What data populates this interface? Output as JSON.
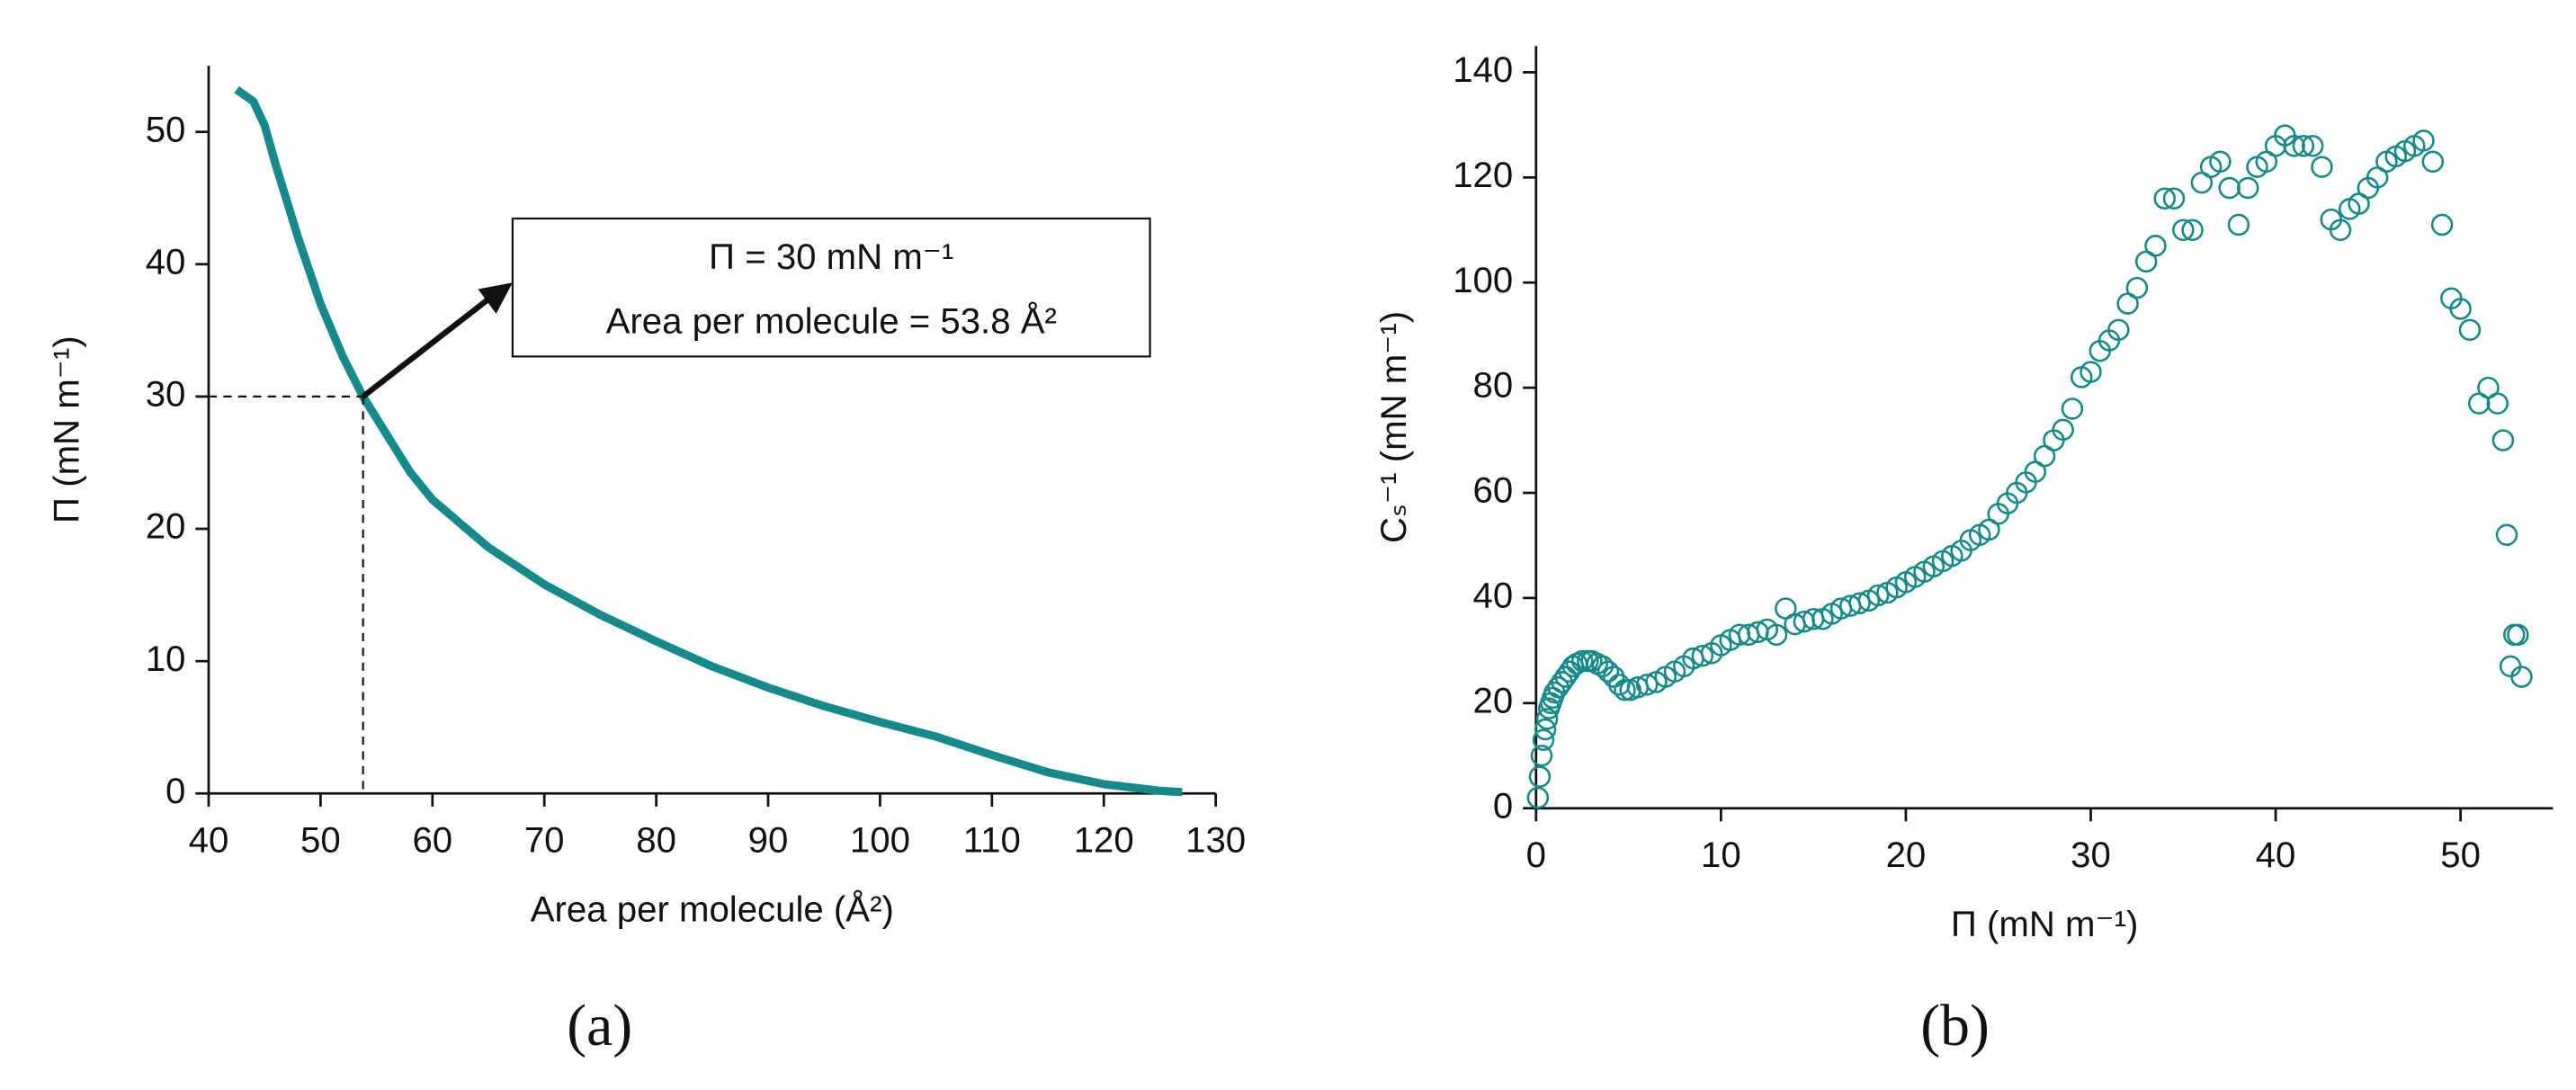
{
  "chart_data": [
    {
      "type": "line",
      "panel_label": "(a)",
      "xlabel": "Area per molecule (Å²)",
      "ylabel": "Π (mN m⁻¹)",
      "annotation": [
        "Π = 30 mN m⁻¹",
        "Area per molecule = 53.8 Å²"
      ],
      "annotation_point": {
        "x": 53.8,
        "y": 30
      },
      "color": "#16898a",
      "x": [
        42.5,
        44,
        45,
        46,
        48,
        50,
        52,
        53.8,
        56,
        58,
        60,
        65,
        70,
        75,
        80,
        85,
        90,
        95,
        100,
        105,
        110,
        115,
        120,
        125,
        127
      ],
      "values": [
        53.2,
        52.3,
        50.5,
        47.5,
        42,
        37,
        33,
        30,
        27,
        24.3,
        22.2,
        18.6,
        15.8,
        13.5,
        11.5,
        9.6,
        8,
        6.6,
        5.4,
        4.3,
        2.9,
        1.6,
        0.7,
        0.2,
        0.1
      ],
      "xlim": [
        40,
        130
      ],
      "xticks": [
        40,
        50,
        60,
        70,
        80,
        90,
        100,
        110,
        120,
        130
      ],
      "ylim": [
        0,
        55
      ],
      "yticks": [
        0,
        10,
        20,
        30,
        40,
        50
      ]
    },
    {
      "type": "scatter",
      "panel_label": "(b)",
      "xlabel": "Π (mN m⁻¹)",
      "ylabel": "Cₛ⁻¹ (mN m⁻¹)",
      "color": "#16898a",
      "x": [
        0.1,
        0.2,
        0.3,
        0.4,
        0.5,
        0.6,
        0.7,
        0.8,
        0.9,
        1.0,
        1.2,
        1.4,
        1.6,
        1.8,
        2.0,
        2.2,
        2.5,
        2.8,
        3.0,
        3.3,
        3.6,
        3.9,
        4.2,
        4.5,
        4.8,
        5.1,
        5.5,
        6,
        6.5,
        7,
        7.5,
        8,
        8.5,
        9,
        9.5,
        10,
        10.5,
        11,
        11.5,
        12,
        12.5,
        13,
        13.5,
        14,
        14.5,
        15,
        15.5,
        16,
        16.5,
        17,
        17.5,
        18,
        18.5,
        19,
        19.5,
        20,
        20.5,
        21,
        21.5,
        22,
        22.5,
        23,
        23.5,
        24,
        24.5,
        25,
        25.5,
        26,
        26.5,
        27,
        27.5,
        28,
        28.5,
        29,
        29.5,
        30,
        30.5,
        31,
        31.5,
        32,
        32.5,
        33,
        33.5,
        34,
        34.5,
        35,
        35.5,
        36,
        36.5,
        37,
        37.5,
        38,
        38.5,
        39,
        39.5,
        40,
        40.5,
        41,
        41.5,
        42,
        42.5,
        43,
        43.5,
        44,
        44.5,
        45,
        45.5,
        46,
        46.5,
        47,
        47.5,
        48,
        48.5,
        49,
        49.5,
        50,
        50.5,
        51,
        51.5,
        52,
        52.3,
        52.5,
        52.7,
        52.9,
        53.1,
        53.3
      ],
      "values": [
        2,
        6,
        10,
        13,
        15,
        17,
        19,
        20,
        21,
        22,
        23,
        24,
        25,
        26,
        27,
        27.5,
        28,
        28,
        28,
        27.5,
        27,
        26,
        25,
        23.5,
        22.5,
        22.5,
        23,
        23.5,
        24,
        25,
        26,
        27,
        28.5,
        29,
        29.5,
        31,
        32,
        33,
        33,
        33.5,
        34,
        33,
        38,
        35,
        35.5,
        36,
        36,
        37,
        38,
        38.5,
        39,
        39.5,
        40.5,
        41,
        42,
        43,
        44,
        45,
        46,
        47,
        48,
        49,
        51,
        52,
        53,
        56,
        58,
        60,
        62,
        64,
        67,
        70,
        72,
        76,
        82,
        83,
        87,
        89,
        91,
        96,
        99,
        104,
        107,
        116,
        116,
        110,
        110,
        119,
        122,
        123,
        118,
        111,
        118,
        122,
        123,
        126,
        128,
        126,
        126,
        126,
        122,
        112,
        110,
        114,
        115,
        118,
        120,
        123,
        124,
        125,
        126,
        127,
        123,
        111,
        97,
        95,
        91,
        77,
        80,
        77,
        70,
        52,
        27,
        33,
        33,
        25
      ],
      "xlim": [
        0,
        55
      ],
      "xticks": [
        0,
        10,
        20,
        30,
        40,
        50
      ],
      "ylim": [
        0,
        145
      ],
      "yticks": [
        0,
        20,
        40,
        60,
        80,
        100,
        120,
        140
      ]
    }
  ]
}
